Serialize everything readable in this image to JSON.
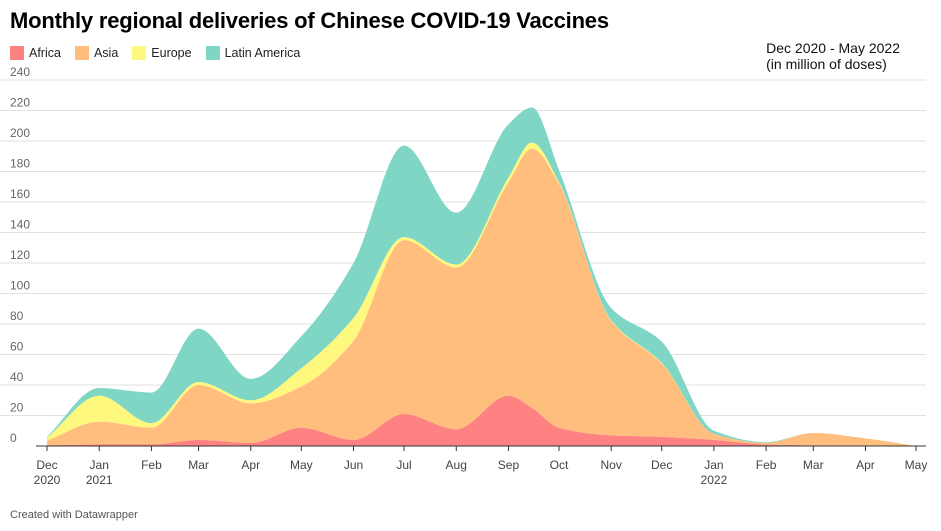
{
  "title": "Monthly regional deliveries of Chinese COVID-19 Vaccines",
  "note": {
    "line1": "Dec 2020 - May 2022",
    "line2": "(in million of doses)"
  },
  "footer": "Created with Datawrapper",
  "legend": [
    {
      "name": "Africa",
      "color": "#ff8283"
    },
    {
      "name": "Asia",
      "color": "#ffbd7e"
    },
    {
      "name": "Europe",
      "color": "#fff87e"
    },
    {
      "name": "Latin America",
      "color": "#7fd6c5"
    }
  ],
  "chart_data": {
    "type": "area",
    "stacked": true,
    "title": "Monthly regional deliveries of Chinese COVID-19 Vaccines",
    "xlabel": "",
    "ylabel": "",
    "ylim": [
      0,
      240
    ],
    "yticks": [
      0,
      20,
      40,
      60,
      80,
      100,
      120,
      140,
      160,
      180,
      200,
      220,
      240
    ],
    "grid": true,
    "legend_position": "top-left",
    "x": [
      "2020-12-01",
      "2021-01-01",
      "2021-02-01",
      "2021-03-01",
      "2021-04-01",
      "2021-05-01",
      "2021-06-01",
      "2021-07-01",
      "2021-08-01",
      "2021-09-01",
      "2021-09-15",
      "2021-10-01",
      "2021-11-01",
      "2021-12-01",
      "2022-01-01",
      "2022-02-01",
      "2022-03-01",
      "2022-04-01",
      "2022-05-01"
    ],
    "xtick_labels": [
      {
        "top": "Dec",
        "bottom": "2020"
      },
      {
        "top": "Jan",
        "bottom": "2021"
      },
      {
        "top": "Feb",
        "bottom": ""
      },
      {
        "top": "Mar",
        "bottom": ""
      },
      {
        "top": "Apr",
        "bottom": ""
      },
      {
        "top": "May",
        "bottom": ""
      },
      {
        "top": "Jun",
        "bottom": ""
      },
      {
        "top": "Jul",
        "bottom": ""
      },
      {
        "top": "Aug",
        "bottom": ""
      },
      {
        "top": "Sep",
        "bottom": ""
      },
      {
        "top": "Oct",
        "bottom": ""
      },
      {
        "top": "Nov",
        "bottom": ""
      },
      {
        "top": "Dec",
        "bottom": ""
      },
      {
        "top": "Jan",
        "bottom": "2022"
      },
      {
        "top": "Feb",
        "bottom": ""
      },
      {
        "top": "Mar",
        "bottom": ""
      },
      {
        "top": "Apr",
        "bottom": ""
      },
      {
        "top": "May",
        "bottom": ""
      }
    ],
    "series": [
      {
        "name": "Africa",
        "color": "#ff8283",
        "values": [
          0.5,
          1,
          1,
          4,
          2,
          12,
          4,
          21,
          11,
          33,
          25,
          12,
          7,
          6,
          4,
          1,
          0.5,
          0.5,
          0
        ]
      },
      {
        "name": "Asia",
        "color": "#ffbd7e",
        "values": [
          3,
          15,
          11,
          36,
          26,
          27,
          65,
          114,
          106,
          140,
          170,
          160,
          75,
          48,
          4,
          1,
          8,
          4.5,
          0
        ]
      },
      {
        "name": "Europe",
        "color": "#fff87e",
        "values": [
          2,
          17,
          3,
          2,
          2,
          12,
          15,
          2,
          2,
          3,
          4,
          1,
          0.5,
          0.5,
          0,
          0,
          0,
          0,
          0
        ]
      },
      {
        "name": "Latin America",
        "color": "#7fd6c5",
        "values": [
          0.5,
          5,
          20,
          35,
          14,
          21,
          36,
          60,
          34,
          35,
          23,
          8,
          8,
          14,
          2,
          0.5,
          0,
          0,
          0
        ]
      }
    ]
  }
}
